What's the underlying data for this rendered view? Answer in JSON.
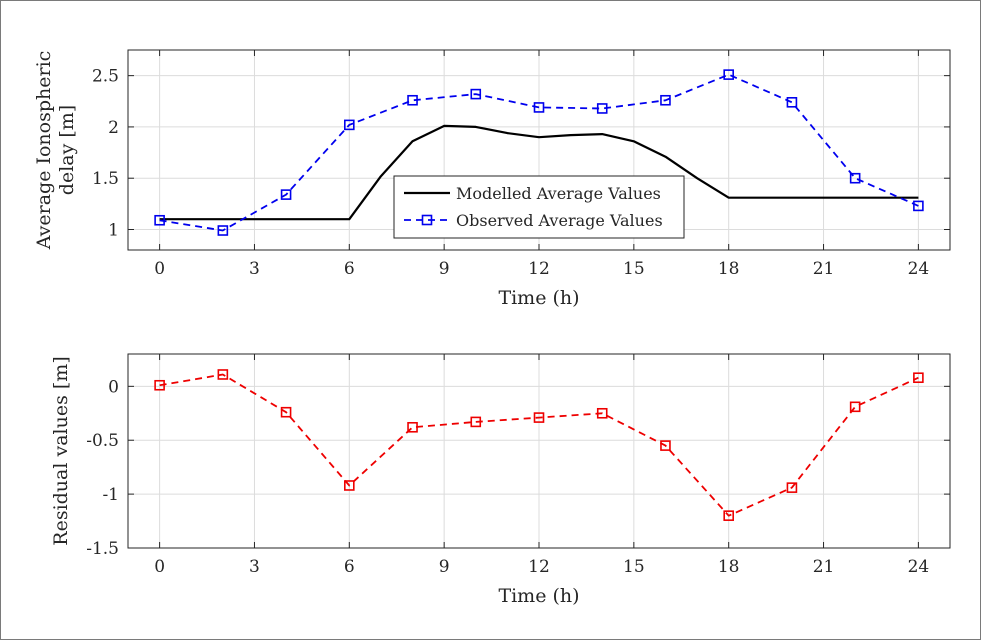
{
  "chart_data": [
    {
      "type": "line",
      "ylabel": [
        "Average Ionospheric",
        "delay [m]"
      ],
      "xlabel": "Time (h)",
      "xlim": [
        -1,
        25
      ],
      "ylim": [
        0.8,
        2.75
      ],
      "xticks": [
        0,
        3,
        6,
        9,
        12,
        15,
        18,
        21,
        24
      ],
      "yticks": [
        1,
        1.5,
        2,
        2.5
      ],
      "ytick_labels": [
        "1",
        "1.5",
        "2",
        "2.5"
      ],
      "grid": true,
      "legend_position": "lower-center",
      "series": [
        {
          "name": "Modelled Average Values",
          "color": "#000000",
          "style": "solid",
          "x": [
            0,
            1,
            2,
            3,
            4,
            5,
            6,
            7,
            8,
            9,
            10,
            11,
            12,
            13,
            14,
            15,
            16,
            17,
            18,
            19,
            20,
            21,
            22,
            23,
            24
          ],
          "y": [
            1.1,
            1.1,
            1.1,
            1.1,
            1.1,
            1.1,
            1.1,
            1.52,
            1.86,
            2.01,
            2.0,
            1.94,
            1.9,
            1.92,
            1.93,
            1.86,
            1.71,
            1.5,
            1.31,
            1.31,
            1.31,
            1.31,
            1.31,
            1.31,
            1.31
          ]
        },
        {
          "name": "Observed Average Values",
          "color": "#0000ee",
          "style": "dashed",
          "marker": "square",
          "x": [
            0,
            2,
            4,
            6,
            8,
            10,
            12,
            14,
            16,
            18,
            20,
            22,
            24
          ],
          "y": [
            1.09,
            0.99,
            1.34,
            2.02,
            2.26,
            2.32,
            2.19,
            2.18,
            2.26,
            2.51,
            2.24,
            1.5,
            1.23
          ]
        }
      ]
    },
    {
      "type": "line",
      "ylabel": [
        "Residual values [m]"
      ],
      "xlabel": "Time (h)",
      "xlim": [
        -1,
        25
      ],
      "ylim": [
        -1.5,
        0.3
      ],
      "xticks": [
        0,
        3,
        6,
        9,
        12,
        15,
        18,
        21,
        24
      ],
      "yticks": [
        -1.5,
        -1,
        -0.5,
        0
      ],
      "ytick_labels": [
        "-1.5",
        "-1",
        "-0.5",
        "0"
      ],
      "grid": true,
      "series": [
        {
          "color": "#ee0000",
          "style": "dashed",
          "marker": "square",
          "x": [
            0,
            2,
            4,
            6,
            8,
            10,
            12,
            14,
            16,
            18,
            20,
            22,
            24
          ],
          "y": [
            0.01,
            0.11,
            -0.24,
            -0.92,
            -0.38,
            -0.33,
            -0.29,
            -0.25,
            -0.55,
            -1.2,
            -0.94,
            -0.19,
            0.08
          ]
        }
      ]
    }
  ]
}
